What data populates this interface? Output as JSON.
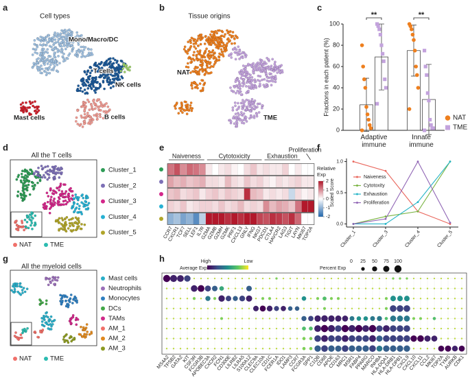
{
  "chart_data": [
    {
      "type": "embedding",
      "label": "a",
      "title": "Cell types",
      "clusters": [
        {
          "name": "Mono/Macro/DC",
          "color": "#9ebfdf"
        },
        {
          "name": "T cells",
          "color": "#1d5a99"
        },
        {
          "name": "NK cells",
          "color": "#9fcf6e"
        },
        {
          "name": "Mast cells",
          "color": "#cf1f2b"
        },
        {
          "name": "B cells",
          "color": "#ee9a92"
        }
      ]
    },
    {
      "type": "embedding",
      "label": "b",
      "title": "Tissue origins",
      "clusters": [
        {
          "name": "NAT",
          "color": "#ee7f1e"
        },
        {
          "name": "TME",
          "color": "#c3a3dd"
        }
      ]
    },
    {
      "type": "bar",
      "label": "c",
      "ylabel": "Fractions in each patient (%)",
      "categories": [
        "Adaptive immune",
        "Innate immune"
      ],
      "ylim": [
        0,
        100
      ],
      "yticks": [
        0,
        20,
        40,
        60,
        80,
        100
      ],
      "series": [
        {
          "name": "NAT",
          "color": "#ee7f1e",
          "marker": "circle",
          "values": [
            24,
            75
          ],
          "errors": [
            25,
            24
          ],
          "points": [
            [
              80,
              60,
              48,
              40,
              22,
              15,
              10,
              5,
              2,
              0
            ],
            [
              100,
              98,
              95,
              90,
              85,
              75,
              60,
              52,
              40,
              20
            ]
          ]
        },
        {
          "name": "TME",
          "color": "#c3a3dd",
          "marker": "square",
          "values": [
            69,
            29
          ],
          "errors": [
            31,
            33
          ],
          "points": [
            [
              100,
              98,
              95,
              90,
              80,
              72,
              65,
              48,
              40,
              25
            ],
            [
              75,
              60,
              52,
              35,
              28,
              10,
              5,
              2,
              2,
              0
            ]
          ]
        }
      ],
      "annotations": [
        "**",
        "**"
      ]
    },
    {
      "type": "embedding",
      "label": "d",
      "title": "All the T cells",
      "clusters": [
        {
          "name": "Cluster_1",
          "color": "#2e9c56"
        },
        {
          "name": "Cluster_2",
          "color": "#7d70b6"
        },
        {
          "name": "Cluster_3",
          "color": "#d3278a"
        },
        {
          "name": "Cluster_4",
          "color": "#27b1d3"
        },
        {
          "name": "Cluster_5",
          "color": "#b0a52a"
        }
      ],
      "groups": [
        {
          "name": "NAT",
          "color": "#f0706a"
        },
        {
          "name": "TME",
          "color": "#2bbbb0"
        }
      ]
    },
    {
      "type": "heatmap",
      "label": "e",
      "groups": [
        {
          "name": "Naiveness",
          "columns": [
            "CCR7",
            "CXCR1",
            "TCF7",
            "SELL",
            "LEF1",
            "IL7R"
          ]
        },
        {
          "name": "Cytotoxicity",
          "columns": [
            "GZMA",
            "GZMB",
            "GZMH",
            "GZMK",
            "PRF1",
            "CXCL13",
            "GNLY",
            "IFNG",
            "NKG7"
          ]
        },
        {
          "name": "Exhaustion",
          "columns": [
            "PDCD1",
            "CTLA4",
            "HAVCR2",
            "LAG3",
            "TIGIT",
            "LAYN"
          ]
        },
        {
          "name": "Proliferation",
          "columns": [
            "MKI67",
            "TOP2A"
          ]
        }
      ],
      "values": [
        [
          1.2,
          1.5,
          1.0,
          1.3,
          1.2,
          1.0,
          0.2,
          0,
          0.2,
          0.3,
          0.1,
          0,
          0.3,
          0.5,
          0.2,
          0.3,
          0.2,
          0.2,
          0.4,
          0,
          0.2,
          0,
          0
        ],
        [
          0.8,
          0.6,
          0.7,
          0.5,
          0.6,
          0.7,
          0.3,
          0.3,
          0.2,
          0.6,
          0.3,
          0.2,
          0.5,
          0.3,
          0.4,
          0.2,
          0.1,
          0.3,
          0.2,
          0.3,
          0.4,
          0.2,
          0.2
        ],
        [
          0.5,
          0.6,
          0.3,
          0.4,
          0.5,
          0.2,
          0.4,
          0.5,
          0.3,
          0.5,
          0.4,
          0.3,
          1.8,
          0.6,
          0.5,
          0.2,
          0.3,
          0.2,
          0.3,
          -0.5,
          0.3,
          0.1,
          0.2
        ],
        [
          0.4,
          0.3,
          0.5,
          0.2,
          0.3,
          0.4,
          0.4,
          0.3,
          0.5,
          0.3,
          0.4,
          0.6,
          0.3,
          0.4,
          0.3,
          1.0,
          0.6,
          0.8,
          0.7,
          0.5,
          1.2,
          2,
          2
        ],
        [
          -1,
          -0.8,
          -1.2,
          -1,
          -1.5,
          -0.6,
          2,
          2,
          2,
          1.8,
          2,
          1.8,
          2,
          2,
          1.6,
          1.5,
          1.8,
          1.7,
          1.5,
          1.8,
          1.3,
          0,
          0
        ]
      ],
      "zlim": [
        -2,
        2
      ],
      "colorbar_label": "Relative Exp",
      "colorbar_ticks": [
        2,
        1,
        0,
        -1,
        -2
      ],
      "colors": [
        "#2166ac",
        "#ffffff",
        "#b2182b"
      ]
    },
    {
      "type": "line",
      "label": "f",
      "ylabel": "Scaled Score",
      "categories": [
        "Cluster_1",
        "Cluster_3",
        "Cluster_4",
        "Cluster_5"
      ],
      "ylim": [
        -0.05,
        1.05
      ],
      "yticks": [
        {
          "value": 0,
          "label": "0.0"
        },
        {
          "value": 0.5,
          "label": "0.5"
        },
        {
          "value": 1,
          "label": "1.0"
        }
      ],
      "series": [
        {
          "name": "Naiveness",
          "color": "#e9655b",
          "values": [
            1,
            0.85,
            0.2,
            0
          ]
        },
        {
          "name": "Cytotoxity",
          "color": "#79b341",
          "values": [
            0,
            0.12,
            0.2,
            1
          ]
        },
        {
          "name": "Exhaustion",
          "color": "#27b5c7",
          "values": [
            0,
            0,
            0.35,
            1
          ]
        },
        {
          "name": "Proliferation",
          "color": "#9066b5",
          "values": [
            0,
            0.08,
            1,
            0.02
          ]
        }
      ]
    },
    {
      "type": "embedding",
      "label": "g",
      "title": "All the myeloid cells",
      "clusters": [
        {
          "name": "Mast cells",
          "color": "#2aaec8"
        },
        {
          "name": "Neutrophils",
          "color": "#9a6fb8"
        },
        {
          "name": "Monocytes",
          "color": "#2f7fc0"
        },
        {
          "name": "DCs",
          "color": "#43a748"
        },
        {
          "name": "TAMs",
          "color": "#d02a8a"
        },
        {
          "name": "AM_1",
          "color": "#f07068"
        },
        {
          "name": "AM_2",
          "color": "#e0891f"
        },
        {
          "name": "AM_3",
          "color": "#8c9a22"
        }
      ],
      "groups": [
        {
          "name": "NAT",
          "color": "#f0706a"
        },
        {
          "name": "TME",
          "color": "#2bbbb0"
        }
      ]
    },
    {
      "type": "dotplot",
      "label": "h",
      "genes": [
        "MS4A2",
        "TPSB2",
        "GATA2",
        "KIT",
        "CSF3R",
        "FCGR3B",
        "APOBEC3A",
        "CXCR2",
        "FCN1",
        "CD300E",
        "LILRB2",
        "LILRA5",
        "S100A12",
        "CLEC9A",
        "CLEC10A",
        "CD1C",
        "FCER1A",
        "IDO1",
        "LAMP3",
        "CCR7",
        "FCGR3A",
        "SPP1",
        "C1QB",
        "CD68",
        "APOE",
        "CD163",
        "MRC1",
        "MSR1",
        "FABP4",
        "PPARG",
        "MARCO",
        "INHBA",
        "HLA-DQA1",
        "HLA-DRB1",
        "HLA-DPB1",
        "CXCL9",
        "CXCL10",
        "CXCL11",
        "CCL2",
        "MKI67",
        "TOP2A",
        "TYMS",
        "AURKB",
        "CDK1"
      ],
      "exp_title": "Average Exp",
      "exp_high": "High",
      "exp_low": "Low",
      "exp_lim": [
        0,
        1
      ],
      "size_title": "Percent Exp",
      "size_ticks": [
        0,
        25,
        50,
        75,
        100
      ],
      "exp": [
        [
          1.0,
          0.9,
          0.9,
          0.8,
          0.1,
          0.1,
          0.1,
          0.1,
          0.1,
          0.1,
          0.1,
          0.1,
          0.1,
          0.1,
          0.1,
          0.1,
          0.2,
          0.1,
          0.1,
          0.1,
          0.1,
          0.1,
          0.1,
          0.1,
          0.1,
          0.1,
          0.1,
          0.1,
          0.1,
          0.1,
          0.1,
          0.1,
          0.1,
          0.2,
          0.2,
          0.2,
          0.1,
          0.1,
          0.1,
          0.1,
          0.1,
          0.1,
          0.1,
          0.1
        ],
        [
          0.1,
          0.1,
          0.1,
          0.1,
          0.9,
          1.0,
          0.8,
          0.7,
          0.4,
          0.1,
          0.1,
          0.1,
          0.7,
          0.1,
          0.1,
          0.1,
          0.1,
          0.1,
          0.1,
          0.1,
          0.1,
          0.1,
          0.1,
          0.1,
          0.1,
          0.1,
          0.1,
          0.1,
          0.1,
          0.1,
          0.1,
          0.1,
          0.1,
          0.1,
          0.1,
          0.1,
          0.1,
          0.1,
          0.1,
          0.1,
          0.1,
          0.1,
          0.1,
          0.1
        ],
        [
          0.1,
          0.1,
          0.1,
          0.1,
          0.2,
          0.1,
          0.6,
          0.2,
          0.9,
          0.8,
          0.7,
          0.8,
          0.9,
          0.1,
          0.2,
          0.2,
          0.1,
          0.1,
          0.1,
          0.1,
          0.5,
          0.1,
          0.2,
          0.3,
          0.2,
          0.2,
          0.1,
          0.1,
          0.1,
          0.1,
          0.1,
          0.1,
          0.2,
          0.5,
          0.5,
          0.5,
          0.1,
          0.1,
          0.1,
          0.1,
          0.1,
          0.1,
          0.1,
          0.1
        ],
        [
          0.1,
          0.1,
          0.1,
          0.1,
          0.1,
          0.1,
          0.1,
          0.1,
          0.1,
          0.1,
          0.1,
          0.1,
          0.1,
          0.9,
          1.0,
          0.9,
          0.8,
          0.9,
          0.7,
          0.7,
          0.1,
          0.1,
          0.1,
          0.2,
          0.1,
          0.1,
          0.1,
          0.1,
          0.1,
          0.1,
          0.1,
          0.1,
          0.2,
          0.8,
          0.8,
          0.8,
          0.1,
          0.1,
          0.1,
          0.1,
          0.1,
          0.1,
          0.1,
          0.1
        ],
        [
          0.1,
          0.1,
          0.1,
          0.1,
          0.1,
          0.1,
          0.1,
          0.1,
          0.2,
          0.1,
          0.1,
          0.1,
          0.1,
          0.1,
          0.1,
          0.1,
          0.1,
          0.1,
          0.1,
          0.1,
          0.7,
          0.8,
          0.9,
          0.9,
          0.9,
          0.9,
          0.9,
          0.6,
          0.5,
          0.5,
          0.6,
          0.6,
          0.3,
          0.6,
          0.6,
          0.6,
          0.2,
          0.2,
          0.1,
          0.3,
          0.1,
          0.1,
          0.1,
          0.1
        ],
        [
          0.1,
          0.1,
          0.1,
          0.1,
          0.1,
          0.1,
          0.1,
          0.1,
          0.1,
          0.1,
          0.1,
          0.1,
          0.1,
          0.1,
          0.1,
          0.1,
          0.1,
          0.1,
          0.1,
          0.1,
          0.3,
          0.3,
          0.9,
          1.0,
          0.9,
          0.8,
          1.0,
          0.9,
          1.0,
          0.9,
          1.0,
          0.8,
          0.9,
          0.8,
          0.8,
          0.8,
          0.1,
          0.1,
          0.1,
          0.1,
          0.1,
          0.1,
          0.1,
          0.1
        ],
        [
          0.1,
          0.1,
          0.1,
          0.1,
          0.1,
          0.1,
          0.1,
          0.1,
          0.1,
          0.1,
          0.1,
          0.1,
          0.1,
          0.1,
          0.1,
          0.1,
          0.1,
          0.1,
          0.1,
          0.1,
          0.2,
          0.2,
          0.8,
          0.9,
          0.8,
          0.8,
          0.9,
          0.8,
          0.8,
          0.8,
          0.9,
          0.7,
          0.8,
          0.8,
          0.8,
          0.8,
          1.0,
          1.0,
          0.9,
          0.9,
          0.1,
          0.1,
          0.1,
          0.1
        ],
        [
          0.1,
          0.1,
          0.1,
          0.1,
          0.1,
          0.1,
          0.1,
          0.1,
          0.1,
          0.1,
          0.1,
          0.1,
          0.1,
          0.1,
          0.1,
          0.1,
          0.1,
          0.1,
          0.1,
          0.1,
          0.2,
          0.2,
          0.7,
          0.8,
          0.7,
          0.7,
          0.8,
          0.7,
          0.7,
          0.7,
          0.8,
          0.6,
          0.7,
          0.7,
          0.7,
          0.7,
          0.1,
          0.1,
          0.1,
          0.1,
          1.0,
          1.0,
          0.9,
          1.0
        ]
      ],
      "pct": [
        [
          100,
          95,
          90,
          80,
          5,
          5,
          5,
          5,
          5,
          5,
          5,
          5,
          5,
          5,
          5,
          5,
          10,
          5,
          5,
          5,
          5,
          5,
          5,
          5,
          5,
          5,
          5,
          5,
          5,
          5,
          5,
          5,
          5,
          10,
          10,
          10,
          5,
          5,
          5,
          5,
          5,
          5,
          5,
          5
        ],
        [
          5,
          5,
          5,
          5,
          85,
          90,
          70,
          60,
          40,
          5,
          5,
          5,
          60,
          5,
          5,
          5,
          5,
          5,
          5,
          5,
          5,
          5,
          5,
          5,
          5,
          5,
          5,
          5,
          5,
          5,
          5,
          5,
          5,
          5,
          5,
          5,
          5,
          5,
          5,
          5,
          5,
          5,
          5,
          5
        ],
        [
          5,
          5,
          5,
          5,
          15,
          5,
          50,
          15,
          80,
          60,
          50,
          65,
          75,
          5,
          15,
          15,
          5,
          5,
          5,
          5,
          40,
          5,
          15,
          30,
          15,
          15,
          5,
          5,
          5,
          5,
          5,
          5,
          15,
          60,
          60,
          60,
          5,
          5,
          5,
          5,
          5,
          5,
          5,
          5
        ],
        [
          5,
          5,
          5,
          5,
          5,
          5,
          5,
          5,
          5,
          5,
          5,
          5,
          5,
          60,
          70,
          65,
          50,
          55,
          40,
          40,
          5,
          5,
          5,
          15,
          5,
          5,
          5,
          5,
          5,
          5,
          5,
          5,
          15,
          85,
          85,
          85,
          5,
          5,
          5,
          5,
          5,
          5,
          5,
          5
        ],
        [
          5,
          5,
          5,
          5,
          5,
          5,
          5,
          5,
          15,
          5,
          5,
          5,
          5,
          5,
          5,
          5,
          5,
          5,
          5,
          5,
          50,
          55,
          80,
          85,
          80,
          75,
          70,
          45,
          40,
          40,
          45,
          50,
          20,
          70,
          70,
          70,
          15,
          15,
          5,
          20,
          5,
          5,
          5,
          5
        ],
        [
          5,
          5,
          5,
          5,
          5,
          5,
          5,
          5,
          5,
          5,
          5,
          5,
          5,
          5,
          5,
          5,
          5,
          5,
          5,
          5,
          30,
          30,
          90,
          100,
          95,
          85,
          100,
          95,
          100,
          90,
          100,
          80,
          90,
          85,
          85,
          85,
          5,
          5,
          5,
          5,
          5,
          5,
          5,
          5
        ],
        [
          5,
          5,
          5,
          5,
          5,
          5,
          5,
          5,
          5,
          5,
          5,
          5,
          5,
          5,
          5,
          5,
          5,
          5,
          5,
          5,
          20,
          20,
          85,
          90,
          85,
          80,
          90,
          85,
          80,
          85,
          90,
          75,
          85,
          85,
          85,
          85,
          80,
          85,
          75,
          70,
          5,
          5,
          5,
          5
        ],
        [
          5,
          5,
          5,
          5,
          5,
          5,
          5,
          5,
          5,
          5,
          5,
          5,
          5,
          5,
          5,
          5,
          5,
          5,
          5,
          5,
          20,
          20,
          80,
          85,
          80,
          75,
          85,
          80,
          75,
          80,
          85,
          70,
          80,
          80,
          80,
          80,
          5,
          5,
          5,
          5,
          70,
          75,
          65,
          70
        ]
      ]
    }
  ]
}
